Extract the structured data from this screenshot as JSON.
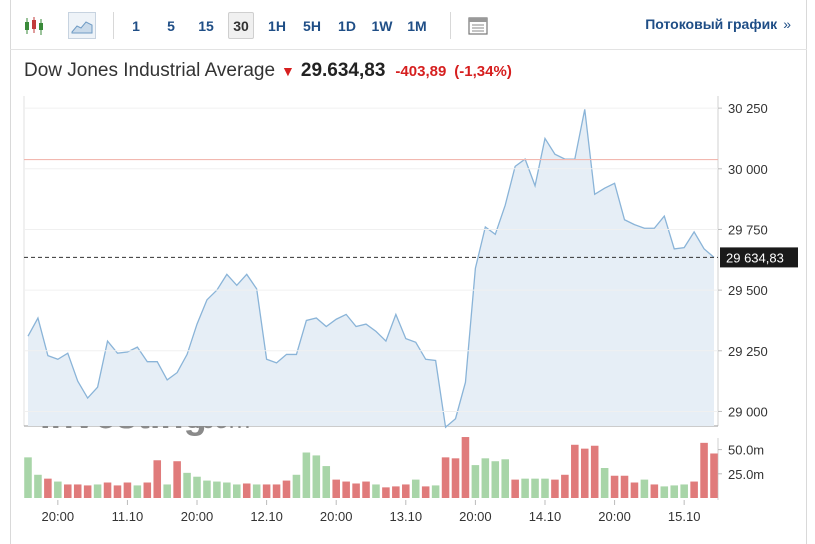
{
  "toolbar": {
    "candles_icon": "candlestick-icon",
    "area_icon": "area-chart-icon",
    "periods": [
      "1",
      "5",
      "15",
      "30",
      "1H",
      "5H",
      "1D",
      "1W",
      "1M"
    ],
    "active_period": "30",
    "table_icon": "table-icon",
    "stream_label": "Потоковый график",
    "stream_chevron": "»"
  },
  "header": {
    "name": "Dow Jones Industrial Average",
    "arrow": "🡇",
    "price": "29.634,83",
    "change": "-403,89",
    "change_pct": "(-1,34%)"
  },
  "colors": {
    "line": "#8ab4d8",
    "area": "#e6eef6",
    "up_volume": "#a8d5a8",
    "down_volume": "#e07b7b",
    "prev_close": "#f2b8b0",
    "last_price_bg": "#1a1a1a",
    "link": "#1f4e86",
    "negative": "#d61f1f"
  },
  "watermark": {
    "brand": "Investing",
    "suffix": ".com"
  },
  "chart_data": {
    "type": "area",
    "price_axis": {
      "ticks": [
        "30 250",
        "30 000",
        "29 750",
        "29 500",
        "29 250",
        "29 000"
      ],
      "tick_values": [
        30250,
        30000,
        29750,
        29500,
        29250,
        29000
      ],
      "ylim": [
        28940,
        30300
      ]
    },
    "prev_close": 30038,
    "last_price": 29634.83,
    "last_price_label": "29 634,83",
    "x_labels": [
      "20:00",
      "11.10",
      "20:00",
      "12.10",
      "20:00",
      "13.10",
      "20:00",
      "14.10",
      "20:00",
      "15.10"
    ],
    "x_label_index": [
      3,
      10,
      17,
      24,
      31,
      38,
      45,
      52,
      59,
      66
    ],
    "series": [
      {
        "values": [
          29310,
          29385,
          29230,
          29215,
          29240,
          29125,
          29055,
          29100,
          29290,
          29240,
          29245,
          29265,
          29205,
          29205,
          29130,
          29160,
          29235,
          29360,
          29460,
          29500,
          29565,
          29520,
          29565,
          29505,
          29215,
          29200,
          29235,
          29235,
          29375,
          29385,
          29350,
          29380,
          29400,
          29350,
          29360,
          29330,
          29290,
          29400,
          29300,
          29285,
          29215,
          29210,
          28935,
          28970,
          29120,
          29590,
          29760,
          29730,
          29850,
          30010,
          30040,
          29930,
          30125,
          30060,
          30040,
          30040,
          30245,
          29895,
          29920,
          29940,
          29790,
          29770,
          29755,
          29755,
          29805,
          29670,
          29675,
          29740,
          29670,
          29635
        ]
      }
    ],
    "volume_axis": {
      "ticks": [
        "50.0m",
        "25.0m"
      ],
      "tick_values": [
        50,
        25
      ],
      "ymax": 62
    },
    "volume": {
      "values": [
        42,
        24,
        20,
        17,
        14,
        14,
        13,
        14,
        16,
        13,
        16,
        13,
        16,
        39,
        14,
        38,
        26,
        22,
        18,
        17,
        16,
        14,
        15,
        14,
        14,
        14,
        18,
        24,
        47,
        44,
        33,
        19,
        17,
        15,
        17,
        14,
        11,
        12,
        14,
        19,
        12,
        13,
        42,
        41,
        63,
        34,
        41,
        38,
        40,
        19,
        20,
        20,
        20,
        19,
        24,
        55,
        51,
        54,
        31,
        23,
        23,
        16,
        19,
        14,
        12,
        13,
        14,
        17,
        57,
        46
      ],
      "direction": [
        "up",
        "up",
        "down",
        "up",
        "down",
        "down",
        "down",
        "up",
        "down",
        "down",
        "down",
        "up",
        "down",
        "down",
        "up",
        "down",
        "up",
        "up",
        "up",
        "up",
        "up",
        "up",
        "down",
        "up",
        "down",
        "down",
        "down",
        "up",
        "up",
        "up",
        "up",
        "down",
        "down",
        "down",
        "down",
        "up",
        "down",
        "down",
        "down",
        "up",
        "down",
        "up",
        "down",
        "down",
        "down",
        "up",
        "up",
        "up",
        "up",
        "down",
        "up",
        "up",
        "up",
        "down",
        "down",
        "down",
        "down",
        "down",
        "up",
        "down",
        "down",
        "down",
        "up",
        "down",
        "up",
        "up",
        "up",
        "down",
        "down",
        "down"
      ]
    }
  }
}
